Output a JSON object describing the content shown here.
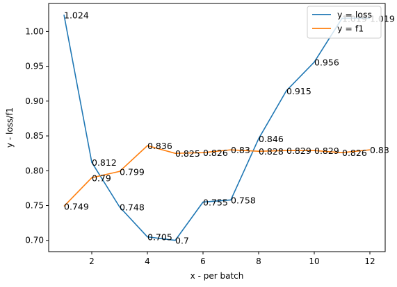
{
  "chart_data": {
    "type": "line",
    "xlabel": "x - per batch",
    "ylabel": "y - loss/f1",
    "xlim": [
      0.45,
      12.55
    ],
    "ylim": [
      0.6838,
      1.0402
    ],
    "xticks": [
      2,
      4,
      6,
      8,
      10,
      12
    ],
    "yticks": [
      0.7,
      0.75,
      0.8,
      0.85,
      0.9,
      0.95,
      1.0
    ],
    "ytick_labels": [
      "0.70",
      "0.75",
      "0.80",
      "0.85",
      "0.90",
      "0.95",
      "1.00"
    ],
    "grid": false,
    "legend_position": "top-right",
    "x": [
      1,
      2,
      3,
      4,
      5,
      6,
      7,
      8,
      9,
      10,
      11,
      12
    ],
    "series": [
      {
        "name": "y = loss",
        "color": "#1f77b4",
        "values": [
          1.024,
          0.812,
          0.748,
          0.705,
          0.7,
          0.755,
          0.758,
          0.846,
          0.915,
          0.956,
          1.019,
          1.019
        ],
        "labels": [
          "1.024",
          "0.812",
          "0.748",
          "0.705",
          "0.7",
          "0.755",
          "0.758",
          "0.846",
          "0.915",
          "0.956",
          "1.019",
          "1.019"
        ]
      },
      {
        "name": "y = f1",
        "color": "#ff7f0e",
        "values": [
          0.749,
          0.79,
          0.799,
          0.836,
          0.825,
          0.826,
          0.83,
          0.828,
          0.829,
          0.829,
          0.826,
          0.83
        ],
        "labels": [
          "0.749",
          "0.79",
          "0.799",
          "0.836",
          "0.825",
          "0.826",
          "0.83",
          "0.828",
          "0.829",
          "0.829",
          "0.826",
          "0.83"
        ]
      }
    ]
  }
}
